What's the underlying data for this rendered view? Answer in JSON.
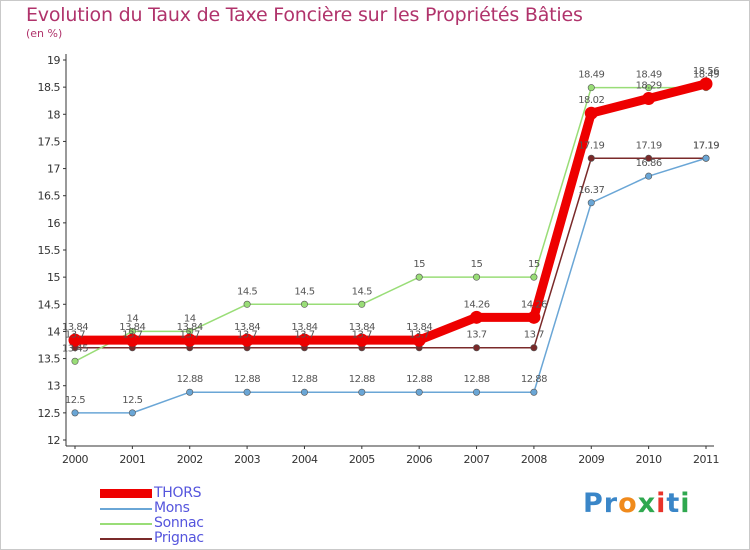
{
  "title": "Evolution du Taux de Taxe Foncière sur les Propriétés Bâties",
  "unit_label": "(en %)",
  "logo_text": "Proxiti",
  "logo_colors": [
    "#3a86c8",
    "#3a86c8",
    "#f08a1c",
    "#2fa84f",
    "#e8332a",
    "#3a86c8",
    "#2fa84f"
  ],
  "chart_data": {
    "type": "line",
    "title": "Evolution du Taux de Taxe Foncière sur les Propriétés Bâties",
    "ylabel": "(en %)",
    "xlabel": "",
    "ylim": [
      12,
      19
    ],
    "yticks": [
      "12",
      "12.5",
      "13",
      "13.5",
      "14",
      "14.5",
      "15",
      "15.5",
      "16",
      "16.5",
      "17",
      "17.5",
      "18",
      "18.5",
      "19"
    ],
    "categories": [
      "2000",
      "2001",
      "2002",
      "2003",
      "2004",
      "2005",
      "2006",
      "2007",
      "2008",
      "2009",
      "2010",
      "2011"
    ],
    "series": [
      {
        "name": "Prignac",
        "color": "#7a2a2a",
        "values": [
          13.7,
          13.7,
          13.7,
          13.7,
          13.7,
          13.7,
          13.7,
          13.7,
          13.7,
          17.19,
          17.19,
          17.19
        ],
        "labels": [
          "13.7",
          "13.7",
          "13.7",
          "13.7",
          "13.7",
          "13.7",
          "13.7",
          "13.7",
          "13.7",
          "17.19",
          "17.19",
          "17.19"
        ]
      },
      {
        "name": "Sonnac",
        "color": "#99dd77",
        "values": [
          13.45,
          14,
          14,
          14.5,
          14.5,
          14.5,
          15,
          15,
          15,
          18.49,
          18.49,
          18.49
        ],
        "labels": [
          "13.45",
          "14",
          "14",
          "14.5",
          "14.5",
          "14.5",
          "15",
          "15",
          "15",
          "18.49",
          "18.49",
          "18.49"
        ]
      },
      {
        "name": "Mons",
        "color": "#6aa6d6",
        "values": [
          12.5,
          12.5,
          12.88,
          12.88,
          12.88,
          12.88,
          12.88,
          12.88,
          12.88,
          16.37,
          16.86,
          17.19
        ],
        "labels": [
          "12.5",
          "12.5",
          "12.88",
          "12.88",
          "12.88",
          "12.88",
          "12.88",
          "12.88",
          "12.88",
          "16.37",
          "16.86",
          "17.19"
        ]
      },
      {
        "name": "THORS",
        "color": "#ee0000",
        "values": [
          13.84,
          13.84,
          13.84,
          13.84,
          13.84,
          13.84,
          13.84,
          14.26,
          14.26,
          18.02,
          18.29,
          18.56
        ],
        "labels": [
          "13.84",
          "13.84",
          "13.84",
          "13.84",
          "13.84",
          "13.84",
          "13.84",
          "14.26",
          "14.26",
          "18.02",
          "18.29",
          "18.56"
        ]
      }
    ],
    "legend": [
      "THORS",
      "Mons",
      "Sonnac",
      "Prignac"
    ],
    "legend_position": "bottom-left",
    "grid": false
  }
}
